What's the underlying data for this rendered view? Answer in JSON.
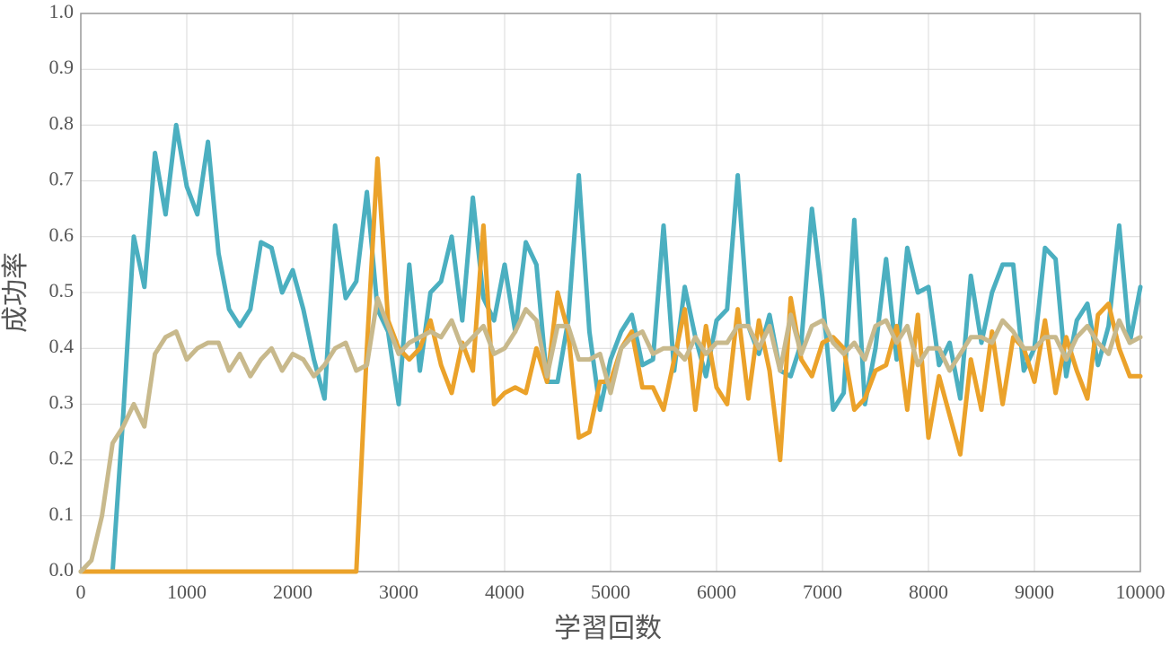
{
  "chart_data": {
    "type": "line",
    "xlabel": "学習回数",
    "ylabel": "成功率",
    "x": [
      0,
      100,
      200,
      300,
      400,
      500,
      600,
      700,
      800,
      900,
      1000,
      1100,
      1200,
      1300,
      1400,
      1500,
      1600,
      1700,
      1800,
      1900,
      2000,
      2100,
      2200,
      2300,
      2400,
      2500,
      2600,
      2700,
      2800,
      2900,
      3000,
      3100,
      3200,
      3300,
      3400,
      3500,
      3600,
      3700,
      3800,
      3900,
      4000,
      4100,
      4200,
      4300,
      4400,
      4500,
      4600,
      4700,
      4800,
      4900,
      5000,
      5100,
      5200,
      5300,
      5400,
      5500,
      5600,
      5700,
      5800,
      5900,
      6000,
      6100,
      6200,
      6300,
      6400,
      6500,
      6600,
      6700,
      6800,
      6900,
      7000,
      7100,
      7200,
      7300,
      7400,
      7500,
      7600,
      7700,
      7800,
      7900,
      8000,
      8100,
      8200,
      8300,
      8400,
      8500,
      8600,
      8700,
      8800,
      8900,
      9000,
      9100,
      9200,
      9300,
      9400,
      9500,
      9600,
      9700,
      9800,
      9900,
      10000
    ],
    "series": [
      {
        "color": "#4bafc0",
        "values": [
          0,
          0,
          0,
          0,
          0.28,
          0.6,
          0.51,
          0.75,
          0.64,
          0.8,
          0.69,
          0.64,
          0.77,
          0.57,
          0.47,
          0.44,
          0.47,
          0.59,
          0.58,
          0.5,
          0.54,
          0.47,
          0.38,
          0.31,
          0.62,
          0.49,
          0.52,
          0.68,
          0.47,
          0.43,
          0.3,
          0.55,
          0.36,
          0.5,
          0.52,
          0.6,
          0.45,
          0.67,
          0.49,
          0.45,
          0.55,
          0.43,
          0.59,
          0.55,
          0.34,
          0.34,
          0.45,
          0.71,
          0.43,
          0.29,
          0.38,
          0.43,
          0.46,
          0.37,
          0.38,
          0.62,
          0.36,
          0.51,
          0.42,
          0.35,
          0.45,
          0.47,
          0.71,
          0.44,
          0.39,
          0.46,
          0.36,
          0.35,
          0.41,
          0.65,
          0.49,
          0.29,
          0.32,
          0.63,
          0.3,
          0.4,
          0.56,
          0.38,
          0.58,
          0.5,
          0.51,
          0.37,
          0.41,
          0.31,
          0.53,
          0.41,
          0.5,
          0.55,
          0.55,
          0.36,
          0.4,
          0.58,
          0.56,
          0.35,
          0.45,
          0.48,
          0.37,
          0.44,
          0.62,
          0.41,
          0.51
        ]
      },
      {
        "color": "#eba22a",
        "values": [
          0,
          0,
          0,
          0,
          0,
          0,
          0,
          0,
          0,
          0,
          0,
          0,
          0,
          0,
          0,
          0,
          0,
          0,
          0,
          0,
          0,
          0,
          0,
          0,
          0,
          0,
          0,
          0.4,
          0.74,
          0.45,
          0.4,
          0.38,
          0.4,
          0.45,
          0.37,
          0.32,
          0.41,
          0.36,
          0.62,
          0.3,
          0.32,
          0.33,
          0.32,
          0.4,
          0.34,
          0.5,
          0.43,
          0.24,
          0.25,
          0.34,
          0.34,
          0.4,
          0.43,
          0.33,
          0.33,
          0.29,
          0.38,
          0.47,
          0.29,
          0.44,
          0.33,
          0.3,
          0.47,
          0.31,
          0.45,
          0.36,
          0.2,
          0.49,
          0.38,
          0.35,
          0.41,
          0.42,
          0.4,
          0.29,
          0.31,
          0.36,
          0.37,
          0.44,
          0.29,
          0.46,
          0.24,
          0.35,
          0.28,
          0.21,
          0.38,
          0.29,
          0.43,
          0.3,
          0.42,
          0.4,
          0.34,
          0.45,
          0.32,
          0.42,
          0.36,
          0.31,
          0.46,
          0.48,
          0.4,
          0.35,
          0.35
        ]
      },
      {
        "color": "#c8b98c",
        "values": [
          0,
          0.02,
          0.1,
          0.23,
          0.26,
          0.3,
          0.26,
          0.39,
          0.42,
          0.43,
          0.38,
          0.4,
          0.41,
          0.41,
          0.36,
          0.39,
          0.35,
          0.38,
          0.4,
          0.36,
          0.39,
          0.38,
          0.35,
          0.37,
          0.4,
          0.41,
          0.36,
          0.37,
          0.49,
          0.44,
          0.39,
          0.41,
          0.42,
          0.43,
          0.42,
          0.45,
          0.4,
          0.42,
          0.44,
          0.39,
          0.4,
          0.43,
          0.47,
          0.45,
          0.35,
          0.44,
          0.44,
          0.38,
          0.38,
          0.39,
          0.32,
          0.4,
          0.42,
          0.43,
          0.39,
          0.4,
          0.4,
          0.38,
          0.42,
          0.39,
          0.41,
          0.41,
          0.44,
          0.44,
          0.4,
          0.44,
          0.36,
          0.46,
          0.39,
          0.44,
          0.45,
          0.41,
          0.39,
          0.41,
          0.38,
          0.44,
          0.45,
          0.41,
          0.44,
          0.37,
          0.4,
          0.4,
          0.36,
          0.39,
          0.42,
          0.42,
          0.41,
          0.45,
          0.43,
          0.4,
          0.4,
          0.42,
          0.42,
          0.38,
          0.42,
          0.44,
          0.41,
          0.39,
          0.45,
          0.41,
          0.42
        ]
      }
    ],
    "xlim": [
      0,
      10000
    ],
    "xticks": [
      0,
      1000,
      2000,
      3000,
      4000,
      5000,
      6000,
      7000,
      8000,
      9000,
      10000
    ],
    "ylim": [
      0,
      1
    ],
    "yticks": [
      {
        "value": 0,
        "label": "0.0"
      },
      0.1,
      0.2,
      0.3,
      0.4,
      0.5,
      0.6,
      0.7,
      0.8,
      0.9,
      {
        "value": 1,
        "label": "1.0"
      }
    ],
    "grid": true
  }
}
